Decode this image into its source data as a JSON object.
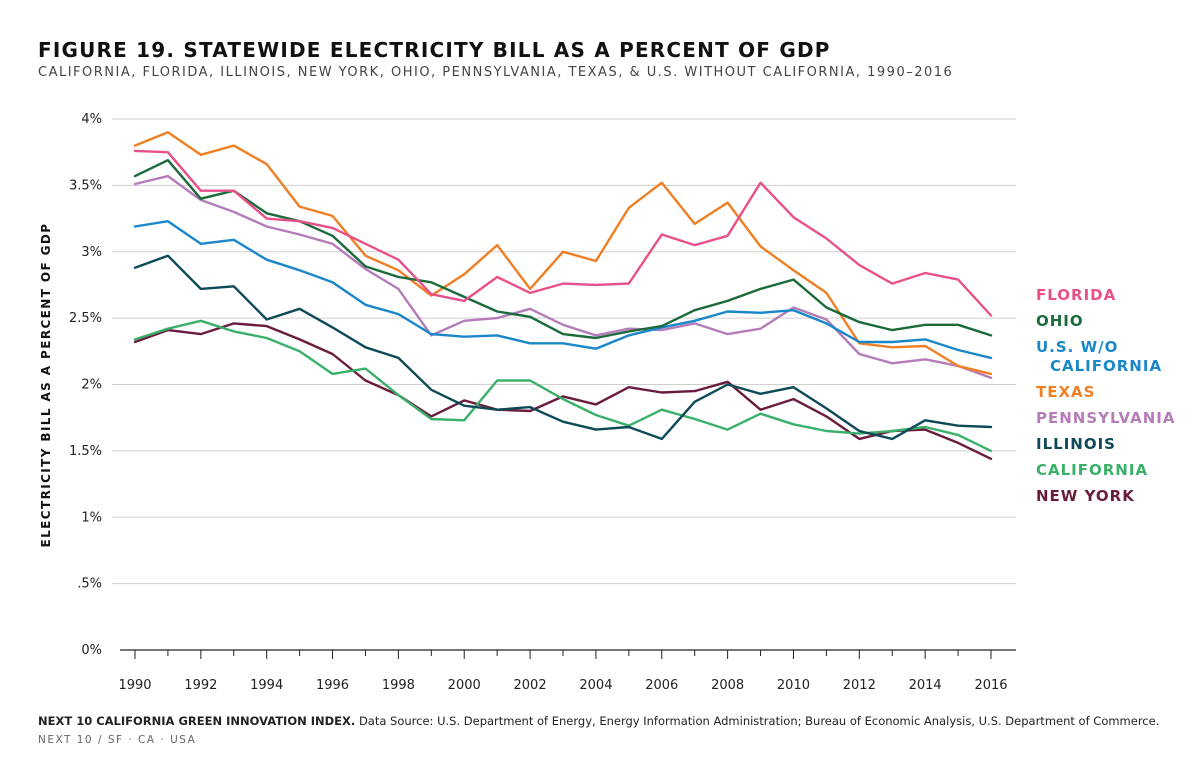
{
  "title": "FIGURE 19. STATEWIDE ELECTRICITY BILL AS A PERCENT OF GDP",
  "subtitle": "CALIFORNIA, FLORIDA, ILLINOIS, NEW YORK, OHIO, PENNSYLVANIA, TEXAS, & U.S. WITHOUT CALIFORNIA, 1990–2016",
  "footer": {
    "source_bold": "NEXT 10 CALIFORNIA GREEN INNOVATION INDEX.",
    "source_text": "Data Source: U.S. Department of Energy, Energy Information Administration; Bureau of Economic Analysis, U.S. Department of Commerce.",
    "org": "NEXT 10 / SF · CA · USA"
  },
  "chart_data": {
    "type": "line",
    "ylabel": "ELECTRICITY BILL AS A PERCENT OF GDP",
    "xlabel": "",
    "ylim": [
      0,
      4
    ],
    "yticks": [
      0,
      0.5,
      1,
      1.5,
      2,
      2.5,
      3,
      3.5,
      4
    ],
    "ytick_labels": [
      "0%",
      ".5%",
      "1%",
      "1.5%",
      "2%",
      "2.5%",
      "3%",
      "3.5%",
      "4%"
    ],
    "xticks": [
      1990,
      1992,
      1994,
      1996,
      1998,
      2000,
      2002,
      2004,
      2006,
      2008,
      2010,
      2012,
      2014,
      2016
    ],
    "x": [
      1990,
      1991,
      1992,
      1993,
      1994,
      1995,
      1996,
      1997,
      1998,
      1999,
      2000,
      2001,
      2002,
      2003,
      2004,
      2005,
      2006,
      2007,
      2008,
      2009,
      2010,
      2011,
      2012,
      2013,
      2014,
      2015,
      2016
    ],
    "grid": "horizontal",
    "legend_position": "right",
    "series": [
      {
        "name": "FLORIDA",
        "color": "#e8508a",
        "values": [
          3.76,
          3.75,
          3.46,
          3.46,
          3.25,
          3.23,
          3.18,
          3.06,
          2.94,
          2.68,
          2.63,
          2.81,
          2.69,
          2.76,
          2.75,
          2.76,
          3.13,
          3.05,
          3.12,
          3.52,
          3.26,
          3.1,
          2.9,
          2.76,
          2.84,
          2.79,
          2.52
        ]
      },
      {
        "name": "OHIO",
        "color": "#1b6b3a",
        "values": [
          3.57,
          3.69,
          3.4,
          3.46,
          3.29,
          3.23,
          3.12,
          2.89,
          2.81,
          2.77,
          2.66,
          2.55,
          2.51,
          2.38,
          2.35,
          2.4,
          2.44,
          2.56,
          2.63,
          2.72,
          2.79,
          2.58,
          2.47,
          2.41,
          2.45,
          2.45,
          2.37
        ]
      },
      {
        "name": "U.S. W/O",
        "name_line2": "CALIFORNIA",
        "color": "#1a87c8",
        "values": [
          3.19,
          3.23,
          3.06,
          3.09,
          2.94,
          2.86,
          2.77,
          2.6,
          2.53,
          2.38,
          2.36,
          2.37,
          2.31,
          2.31,
          2.27,
          2.37,
          2.43,
          2.48,
          2.55,
          2.54,
          2.56,
          2.46,
          2.32,
          2.32,
          2.34,
          2.26,
          2.2
        ]
      },
      {
        "name": "TEXAS",
        "color": "#f07f23",
        "values": [
          3.8,
          3.9,
          3.73,
          3.8,
          3.66,
          3.34,
          3.27,
          2.97,
          2.86,
          2.67,
          2.83,
          3.05,
          2.72,
          3.0,
          2.93,
          3.33,
          3.52,
          3.21,
          3.37,
          3.04,
          2.86,
          2.69,
          2.31,
          2.28,
          2.29,
          2.14,
          2.08
        ]
      },
      {
        "name": "PENNSYLVANIA",
        "color": "#b57cba",
        "values": [
          3.51,
          3.57,
          3.39,
          3.3,
          3.19,
          3.13,
          3.06,
          2.87,
          2.72,
          2.37,
          2.48,
          2.5,
          2.57,
          2.45,
          2.37,
          2.42,
          2.41,
          2.46,
          2.38,
          2.42,
          2.58,
          2.49,
          2.23,
          2.16,
          2.19,
          2.14,
          2.05
        ]
      },
      {
        "name": "ILLINOIS",
        "color": "#0d4a57",
        "values": [
          2.88,
          2.97,
          2.72,
          2.74,
          2.49,
          2.57,
          2.43,
          2.28,
          2.2,
          1.96,
          1.84,
          1.81,
          1.83,
          1.72,
          1.66,
          1.68,
          1.59,
          1.87,
          2.0,
          1.93,
          1.98,
          1.82,
          1.65,
          1.59,
          1.73,
          1.69,
          1.68
        ]
      },
      {
        "name": "CALIFORNIA",
        "color": "#3bb06a",
        "values": [
          2.34,
          2.42,
          2.48,
          2.4,
          2.35,
          2.25,
          2.08,
          2.12,
          1.92,
          1.74,
          1.73,
          2.03,
          2.03,
          1.89,
          1.77,
          1.69,
          1.81,
          1.74,
          1.66,
          1.78,
          1.7,
          1.65,
          1.63,
          1.65,
          1.68,
          1.62,
          1.5
        ]
      },
      {
        "name": "NEW YORK",
        "color": "#6a1c3c",
        "values": [
          2.32,
          2.41,
          2.38,
          2.46,
          2.44,
          2.34,
          2.23,
          2.03,
          1.92,
          1.76,
          1.88,
          1.81,
          1.8,
          1.91,
          1.85,
          1.98,
          1.94,
          1.95,
          2.02,
          1.81,
          1.89,
          1.76,
          1.59,
          1.65,
          1.66,
          1.56,
          1.44
        ]
      }
    ]
  }
}
